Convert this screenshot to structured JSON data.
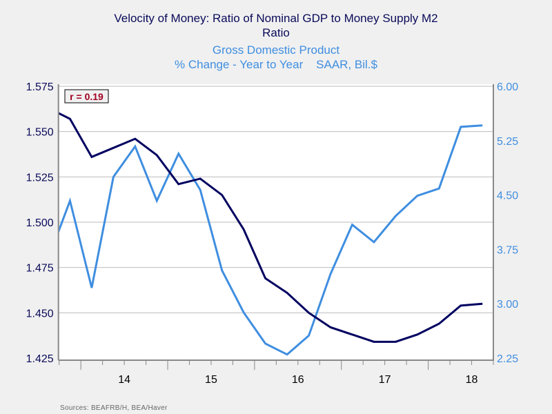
{
  "chart_data": {
    "type": "line",
    "title": "Velocity of Money: Ratio of Nominal GDP to Money Supply M2",
    "left_axis_unit": "Ratio",
    "right_series_title": "Gross Domestic Product",
    "right_axis_unit": "% Change - Year to Year    SAAR, Bil.$",
    "annotation": "r = 0.19",
    "source": "Sources:  BEAFRB/H, BEA/Haver",
    "x": [
      "2013Q3",
      "2013Q4",
      "2014Q1",
      "2014Q2",
      "2014Q3",
      "2014Q4",
      "2015Q1",
      "2015Q2",
      "2015Q3",
      "2015Q4",
      "2016Q1",
      "2016Q2",
      "2016Q3",
      "2016Q4",
      "2017Q1",
      "2017Q2",
      "2017Q3",
      "2017Q4",
      "2018Q1",
      "2018Q2",
      "2018Q3"
    ],
    "x_tick_labels": [
      "14",
      "15",
      "16",
      "17",
      "18"
    ],
    "x_range": [
      "2013Q4",
      "2018Q3"
    ],
    "grid": true,
    "series": [
      {
        "axis": "left",
        "color": "#000060",
        "values": [
          1.563,
          1.557,
          1.536,
          1.541,
          1.546,
          1.537,
          1.521,
          1.524,
          1.515,
          1.496,
          1.469,
          1.461,
          1.45,
          1.442,
          1.438,
          1.434,
          1.434,
          1.438,
          1.444,
          1.454,
          1.455
        ]
      },
      {
        "axis": "right",
        "color": "#3f8ee0",
        "values": [
          3.62,
          4.42,
          3.22,
          4.75,
          5.17,
          4.42,
          5.07,
          4.57,
          3.46,
          2.88,
          2.45,
          2.3,
          2.56,
          3.41,
          4.09,
          3.85,
          4.21,
          4.49,
          4.59,
          5.44,
          5.46
        ]
      }
    ],
    "left_axis": {
      "min": 1.425,
      "max": 1.575,
      "ticks": [
        "1.425",
        "1.450",
        "1.475",
        "1.500",
        "1.525",
        "1.550",
        "1.575"
      ],
      "color": "#0a0a5a"
    },
    "right_axis": {
      "min": 2.25,
      "max": 6.0,
      "ticks": [
        "2.25",
        "3.00",
        "3.75",
        "4.50",
        "5.25",
        "6.00"
      ],
      "color": "#3f8ee0"
    },
    "annotation_color": "#a00020"
  }
}
